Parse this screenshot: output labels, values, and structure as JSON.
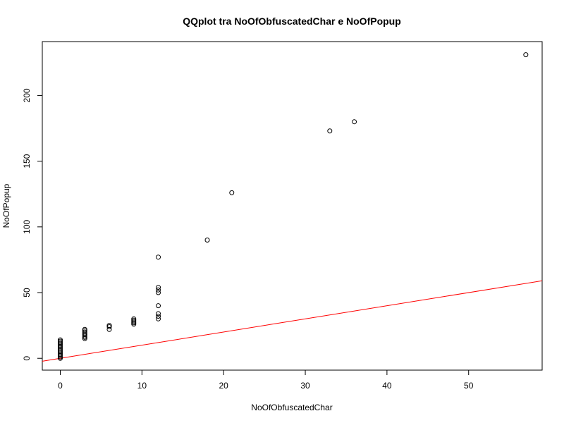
{
  "chart_data": {
    "type": "scatter",
    "title": "QQplot tra NoOfObfuscatedChar e NoOfPopup",
    "xlabel": "NoOfObfuscatedChar",
    "ylabel": "NoOfPopup",
    "xlim": [
      -2.2,
      59.0
    ],
    "ylim": [
      -9,
      241
    ],
    "x_ticks": [
      0,
      10,
      20,
      30,
      40,
      50
    ],
    "y_ticks": [
      0,
      50,
      100,
      150,
      200
    ],
    "grid": false,
    "legend": "none",
    "point_color": "#000000",
    "line_color": "#ff0000",
    "reference_line": {
      "intercept": 0,
      "slope": 1
    },
    "points": [
      {
        "x": 0,
        "y": 0
      },
      {
        "x": 0,
        "y": 1
      },
      {
        "x": 0,
        "y": 2
      },
      {
        "x": 0,
        "y": 3
      },
      {
        "x": 0,
        "y": 4
      },
      {
        "x": 0,
        "y": 5
      },
      {
        "x": 0,
        "y": 6
      },
      {
        "x": 0,
        "y": 7
      },
      {
        "x": 0,
        "y": 8
      },
      {
        "x": 0,
        "y": 9
      },
      {
        "x": 0,
        "y": 10
      },
      {
        "x": 0,
        "y": 11
      },
      {
        "x": 0,
        "y": 12
      },
      {
        "x": 0,
        "y": 13
      },
      {
        "x": 0,
        "y": 14
      },
      {
        "x": 3,
        "y": 15
      },
      {
        "x": 3,
        "y": 16
      },
      {
        "x": 3,
        "y": 17
      },
      {
        "x": 3,
        "y": 18
      },
      {
        "x": 3,
        "y": 19
      },
      {
        "x": 3,
        "y": 20
      },
      {
        "x": 3,
        "y": 21
      },
      {
        "x": 3,
        "y": 22
      },
      {
        "x": 6,
        "y": 22
      },
      {
        "x": 6,
        "y": 24
      },
      {
        "x": 6,
        "y": 25
      },
      {
        "x": 9,
        "y": 26
      },
      {
        "x": 9,
        "y": 27
      },
      {
        "x": 9,
        "y": 28
      },
      {
        "x": 9,
        "y": 29
      },
      {
        "x": 9,
        "y": 30
      },
      {
        "x": 12,
        "y": 30
      },
      {
        "x": 12,
        "y": 32
      },
      {
        "x": 12,
        "y": 34
      },
      {
        "x": 12,
        "y": 40
      },
      {
        "x": 12,
        "y": 50
      },
      {
        "x": 12,
        "y": 52
      },
      {
        "x": 12,
        "y": 54
      },
      {
        "x": 12,
        "y": 77
      },
      {
        "x": 18,
        "y": 90
      },
      {
        "x": 21,
        "y": 126
      },
      {
        "x": 33,
        "y": 173
      },
      {
        "x": 36,
        "y": 180
      },
      {
        "x": 57,
        "y": 231
      }
    ]
  }
}
